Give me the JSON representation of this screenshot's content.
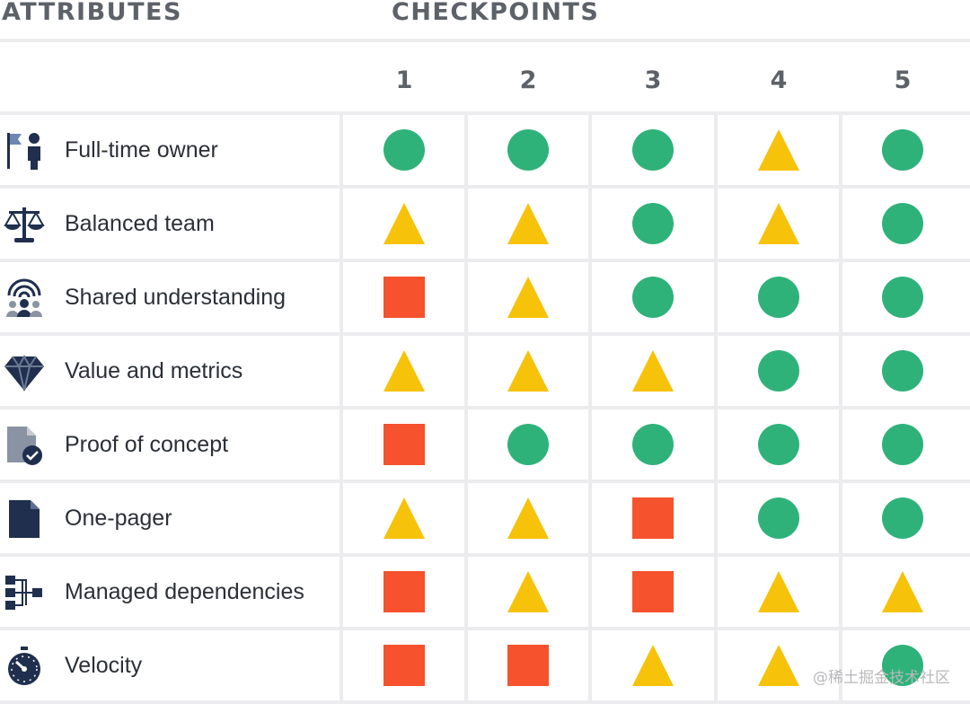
{
  "header": {
    "attributes_label": "ATTRIBUTES",
    "checkpoints_label": "CHECKPOINTS"
  },
  "watermark": "@稀土掘金技术社区",
  "colors": {
    "circle": "#2fb27a",
    "triangle": "#f7c20a",
    "square": "#f5522d",
    "icon": "#1f2f4d",
    "grid": "#ececee"
  },
  "chart_data": {
    "type": "table",
    "columns": [
      "1",
      "2",
      "3",
      "4",
      "5"
    ],
    "rows": [
      {
        "label": "Full-time owner",
        "icon": "flag-person-icon",
        "values": [
          "circle",
          "circle",
          "circle",
          "triangle",
          "circle"
        ]
      },
      {
        "label": "Balanced team",
        "icon": "scales-icon",
        "values": [
          "triangle",
          "triangle",
          "circle",
          "triangle",
          "circle"
        ]
      },
      {
        "label": "Shared understanding",
        "icon": "team-broadcast-icon",
        "values": [
          "square",
          "triangle",
          "circle",
          "circle",
          "circle"
        ]
      },
      {
        "label": "Value and metrics",
        "icon": "diamond-icon",
        "values": [
          "triangle",
          "triangle",
          "triangle",
          "circle",
          "circle"
        ]
      },
      {
        "label": "Proof of concept",
        "icon": "document-check-icon",
        "values": [
          "square",
          "circle",
          "circle",
          "circle",
          "circle"
        ]
      },
      {
        "label": "One-pager",
        "icon": "document-icon",
        "values": [
          "triangle",
          "triangle",
          "square",
          "circle",
          "circle"
        ]
      },
      {
        "label": "Managed dependencies",
        "icon": "dependency-tree-icon",
        "values": [
          "square",
          "triangle",
          "square",
          "triangle",
          "triangle"
        ]
      },
      {
        "label": "Velocity",
        "icon": "stopwatch-icon",
        "values": [
          "square",
          "square",
          "triangle",
          "triangle",
          "circle"
        ]
      }
    ]
  }
}
